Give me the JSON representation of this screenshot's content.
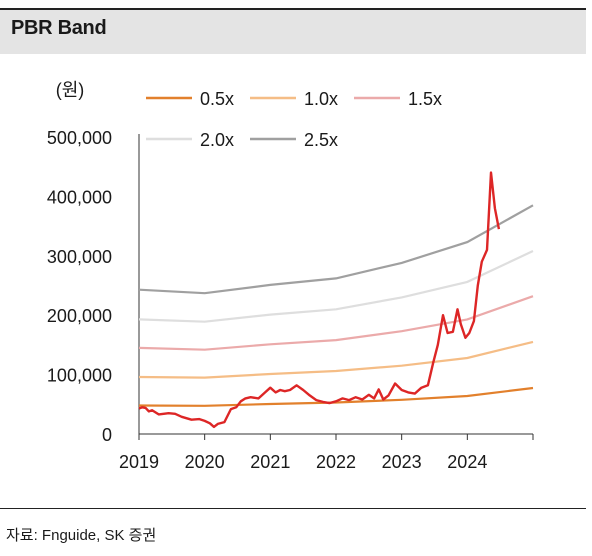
{
  "header": {
    "title": "PBR Band"
  },
  "source": {
    "text": "자료: Fnguide, SK 증권"
  },
  "chart_data": {
    "type": "line",
    "title": "PBR Band",
    "ylabel": "(원)",
    "xlabel": "",
    "ylim": [
      0,
      500000
    ],
    "xlim": [
      2019.0,
      2025.0
    ],
    "yticks": [
      {
        "value": 0,
        "label": "0"
      },
      {
        "value": 100000,
        "label": "100,000"
      },
      {
        "value": 200000,
        "label": "200,000"
      },
      {
        "value": 300000,
        "label": "300,000"
      },
      {
        "value": 400000,
        "label": "400,000"
      },
      {
        "value": 500000,
        "label": "500,000"
      }
    ],
    "xticks": [
      {
        "value": 2019,
        "label": "2019"
      },
      {
        "value": 2020,
        "label": "2020"
      },
      {
        "value": 2021,
        "label": "2021"
      },
      {
        "value": 2022,
        "label": "2022"
      },
      {
        "value": 2023,
        "label": "2023"
      },
      {
        "value": 2024,
        "label": "2024"
      }
    ],
    "grid": false,
    "legend_position": "top",
    "bands": [
      {
        "name": "0.5x",
        "color": "#e2802c",
        "x": [
          2019.0,
          2020.0,
          2021.0,
          2022.0,
          2023.0,
          2024.0,
          2025.0
        ],
        "y": [
          48000,
          47500,
          50500,
          53000,
          57500,
          64000,
          77500
        ]
      },
      {
        "name": "1.0x",
        "color": "#f5bd86",
        "x": [
          2019.0,
          2020.0,
          2021.0,
          2022.0,
          2023.0,
          2024.0,
          2025.0
        ],
        "y": [
          96000,
          95000,
          101000,
          106000,
          115000,
          128000,
          155000
        ]
      },
      {
        "name": "1.5x",
        "color": "#ebaaaa",
        "x": [
          2019.0,
          2020.0,
          2021.0,
          2022.0,
          2023.0,
          2024.0,
          2025.0
        ],
        "y": [
          145000,
          142000,
          151000,
          158000,
          173000,
          193000,
          232000
        ]
      },
      {
        "name": "2.0x",
        "color": "#dedede",
        "x": [
          2019.0,
          2020.0,
          2021.0,
          2022.0,
          2023.0,
          2024.0,
          2025.0
        ],
        "y": [
          193000,
          189000,
          201000,
          210000,
          230000,
          256000,
          308000
        ]
      },
      {
        "name": "2.5x",
        "color": "#a0a0a0",
        "x": [
          2019.0,
          2020.0,
          2021.0,
          2022.0,
          2023.0,
          2024.0,
          2025.0
        ],
        "y": [
          243000,
          237000,
          251000,
          262000,
          288000,
          323000,
          385000
        ]
      }
    ],
    "price": {
      "color": "#dd2626",
      "x": [
        2019.0,
        2019.05,
        2019.1,
        2019.15,
        2019.2,
        2019.3,
        2019.45,
        2019.55,
        2019.65,
        2019.8,
        2019.92,
        2020.0,
        2020.08,
        2020.14,
        2020.2,
        2020.3,
        2020.4,
        2020.48,
        2020.55,
        2020.62,
        2020.7,
        2020.82,
        2020.92,
        2021.0,
        2021.08,
        2021.15,
        2021.22,
        2021.3,
        2021.4,
        2021.5,
        2021.6,
        2021.7,
        2021.8,
        2021.9,
        2022.0,
        2022.1,
        2022.2,
        2022.3,
        2022.4,
        2022.5,
        2022.58,
        2022.65,
        2022.72,
        2022.8,
        2022.9,
        2023.0,
        2023.1,
        2023.2,
        2023.3,
        2023.4,
        2023.48,
        2023.55,
        2023.63,
        2023.7,
        2023.78,
        2023.85,
        2023.9,
        2023.97,
        2024.03,
        2024.1,
        2024.16,
        2024.22,
        2024.3,
        2024.36,
        2024.42,
        2024.48
      ],
      "y": [
        43000,
        45000,
        44000,
        38000,
        40000,
        33000,
        35000,
        34000,
        29000,
        24000,
        25000,
        22000,
        18000,
        12000,
        17000,
        20000,
        42000,
        45000,
        55000,
        60000,
        62000,
        60000,
        70000,
        78000,
        70000,
        74000,
        72000,
        74000,
        82000,
        74000,
        65000,
        57000,
        54000,
        52000,
        55000,
        60000,
        57000,
        62000,
        58000,
        66000,
        60000,
        75000,
        58000,
        65000,
        85000,
        74000,
        70000,
        68000,
        78000,
        82000,
        120000,
        150000,
        200000,
        170000,
        172000,
        210000,
        185000,
        162000,
        170000,
        190000,
        250000,
        290000,
        310000,
        440000,
        380000,
        345000
      ]
    }
  }
}
